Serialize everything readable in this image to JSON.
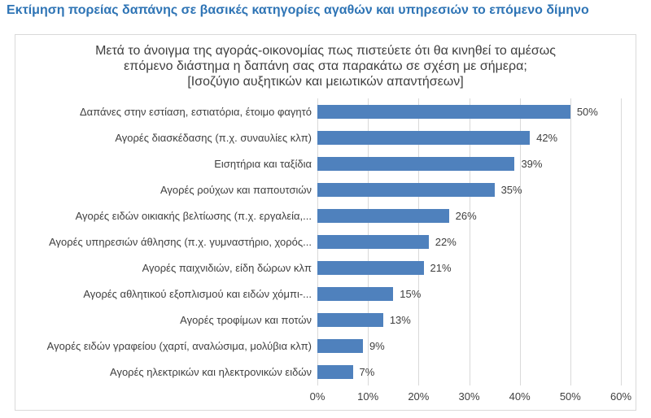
{
  "page": {
    "title": "Εκτίμηση πορείας δαπάνης σε βασικές κατηγορίες αγαθών και υπηρεσιών το επόμενο  δίμηνο"
  },
  "chart": {
    "title_lines": [
      "Μετά το άνοιγμα της αγοράς-οικονομίας πως πιστεύετε ότι θα κινηθεί το αμέσως",
      "επόμενο διάστημα η δαπάνη σας στα παρακάτω σε σχέση με σήμερα;",
      "[Ισοζύγιο αυξητικών και μειωτικών απαντήσεων]"
    ]
  },
  "chart_data": {
    "type": "bar",
    "orientation": "horizontal",
    "title": "Μετά το άνοιγμα της αγοράς-οικονομίας πως πιστεύετε ότι θα κινηθεί το αμέσως επόμενο διάστημα η δαπάνη σας στα παρακάτω σε σχέση με σήμερα; [Ισοζύγιο αυξητικών και μειωτικών απαντήσεων]",
    "categories": [
      "Δαπάνες στην εστίαση, εστιατόρια, έτοιμο φαγητό",
      "Αγορές διασκέδασης (π.χ. συναυλίες κλπ)",
      "Εισητήρια και ταξίδια",
      "Αγορές ρούχων και παπουτσιών",
      "Αγορές ειδών οικιακής βελτίωσης (π.χ. εργαλεία,...",
      "Αγορές υπηρεσιών άθλησης (π.χ. γυμναστήριο, χορός...",
      "Αγορές παιχνιδιών, είδη δώρων κλπ",
      "Αγορές αθλητικού εξοπλισμού και ειδών χόμπι-...",
      "Αγορές τροφίμων και ποτών",
      "Αγορές ειδών γραφείου (χαρτί, αναλώσιμα, μολύβια κλπ)",
      "Αγορές ηλεκτρικών και ηλεκτρονικών ειδών"
    ],
    "values": [
      50,
      42,
      39,
      35,
      26,
      22,
      21,
      15,
      13,
      9,
      7
    ],
    "value_labels": [
      "50%",
      "42%",
      "39%",
      "35%",
      "26%",
      "22%",
      "21%",
      "15%",
      "13%",
      "9%",
      "7%"
    ],
    "x_ticks": [
      "0%",
      "10%",
      "20%",
      "30%",
      "40%",
      "50%",
      "60%"
    ],
    "xlim": [
      0,
      60
    ],
    "grid": true,
    "legend": false,
    "bar_color": "#4F81BD",
    "gridline_color": "#D9D9D9",
    "text_color": "#3F3F3F",
    "accent_color": "#2E74B5",
    "frame_border_color": "#D9D9D9"
  }
}
